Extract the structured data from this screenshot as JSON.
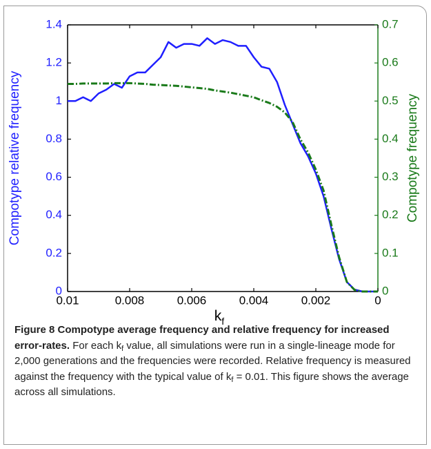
{
  "chart_data": {
    "type": "line",
    "xlabel": "k",
    "xlabel_subscript": "f",
    "ylabel": "Compotype relative frequency",
    "y2label": "Compotype frequency",
    "x": [
      0.01,
      0.00975,
      0.0095,
      0.00925,
      0.009,
      0.00875,
      0.0085,
      0.00825,
      0.008,
      0.00775,
      0.0075,
      0.00725,
      0.007,
      0.00675,
      0.0065,
      0.00625,
      0.006,
      0.00575,
      0.0055,
      0.00525,
      0.005,
      0.00475,
      0.0045,
      0.00425,
      0.004,
      0.00375,
      0.0035,
      0.00325,
      0.003,
      0.00275,
      0.0025,
      0.00225,
      0.002,
      0.00175,
      0.0015,
      0.00125,
      0.001,
      0.00075,
      0.0005,
      0.00025,
      0
    ],
    "series": [
      {
        "name": "Compotype relative frequency",
        "color": "#1f1fff",
        "axis": "y",
        "values": [
          1.0,
          1.0,
          1.02,
          1.0,
          1.04,
          1.06,
          1.09,
          1.07,
          1.13,
          1.15,
          1.15,
          1.19,
          1.23,
          1.31,
          1.28,
          1.3,
          1.3,
          1.29,
          1.33,
          1.3,
          1.32,
          1.31,
          1.29,
          1.29,
          1.23,
          1.18,
          1.17,
          1.1,
          0.98,
          0.88,
          0.78,
          0.71,
          0.62,
          0.5,
          0.33,
          0.17,
          0.05,
          0.01,
          0,
          0,
          0
        ]
      },
      {
        "name": "Compotype frequency",
        "color": "#1a7a1a",
        "axis": "y2",
        "values": [
          0.545,
          0.545,
          0.546,
          0.546,
          0.546,
          0.546,
          0.547,
          0.547,
          0.547,
          0.546,
          0.545,
          0.543,
          0.542,
          0.541,
          0.54,
          0.538,
          0.536,
          0.534,
          0.532,
          0.528,
          0.525,
          0.522,
          0.518,
          0.514,
          0.51,
          0.502,
          0.495,
          0.485,
          0.47,
          0.445,
          0.4,
          0.365,
          0.32,
          0.265,
          0.175,
          0.09,
          0.025,
          0.004,
          0,
          0,
          0
        ]
      }
    ],
    "xlim": [
      0.01,
      0
    ],
    "xticks": [
      0.01,
      0.008,
      0.006,
      0.004,
      0.002,
      0
    ],
    "ylim": [
      0,
      1.4
    ],
    "yticks": [
      0,
      0.2,
      0.4,
      0.6,
      0.8,
      1,
      1.2,
      1.4
    ],
    "y2lim": [
      0,
      0.7
    ],
    "y2ticks": [
      0,
      0.1,
      0.2,
      0.3,
      0.4,
      0.5,
      0.6,
      0.7
    ]
  },
  "caption": {
    "label": "Figure 8",
    "title": "Compotype average frequency and relative frequency for increased error-rates.",
    "body": [
      "For each k",
      "f",
      " value, all simulations were run in a single-lineage mode for 2,000 generations and the frequencies were recorded. Relative frequency is measured against the frequency with the typical value of k",
      "f",
      " = 0.01. This figure shows the average across all simulations."
    ]
  }
}
